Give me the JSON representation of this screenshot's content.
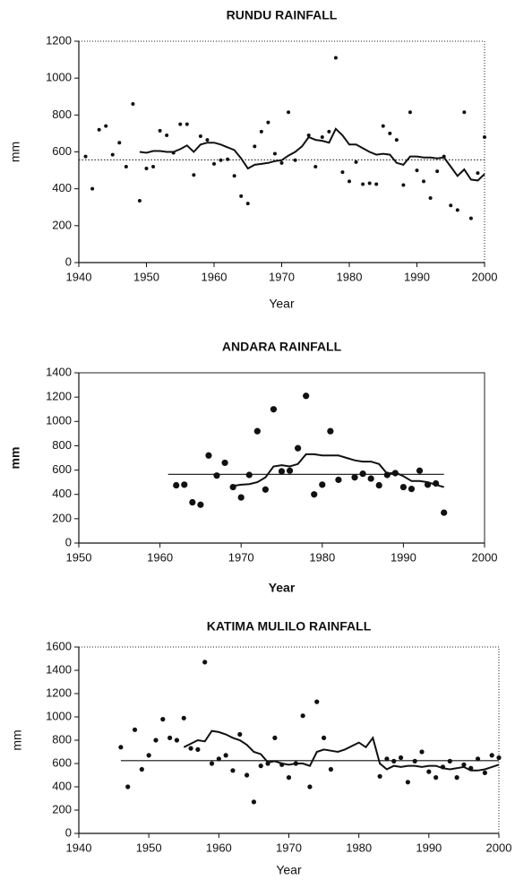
{
  "chart_data": [
    {
      "type": "scatter",
      "title": "RUNDU RAINFALL",
      "xlabel": "Year",
      "ylabel": "mm",
      "xlim": [
        1940,
        2000
      ],
      "ylim": [
        0,
        1200
      ],
      "xticks": [
        1940,
        1950,
        1960,
        1970,
        1980,
        1990,
        2000
      ],
      "yticks": [
        0,
        200,
        400,
        600,
        800,
        1000,
        1200
      ],
      "frame": "dotted",
      "color": "#111",
      "series": [
        {
          "kind": "points",
          "x": [
            1941,
            1942,
            1943,
            1944,
            1945,
            1946,
            1947,
            1948,
            1949,
            1950,
            1951,
            1952,
            1953,
            1954,
            1955,
            1956,
            1957,
            1958,
            1959,
            1960,
            1961,
            1962,
            1963,
            1964,
            1965,
            1966,
            1967,
            1968,
            1969,
            1970,
            1971,
            1972,
            1974,
            1975,
            1976,
            1977,
            1978,
            1979,
            1980,
            1981,
            1982,
            1983,
            1984,
            1985,
            1986,
            1987,
            1988,
            1989,
            1990,
            1991,
            1992,
            1993,
            1994,
            1995,
            1996,
            1997,
            1998,
            1999,
            2000
          ],
          "values": [
            575,
            400,
            720,
            740,
            585,
            650,
            520,
            860,
            335,
            510,
            520,
            715,
            690,
            595,
            750,
            750,
            475,
            685,
            665,
            535,
            555,
            560,
            470,
            360,
            320,
            630,
            710,
            760,
            590,
            540,
            815,
            555,
            690,
            520,
            680,
            710,
            1110,
            490,
            440,
            545,
            425,
            430,
            425,
            740,
            700,
            665,
            420,
            815,
            500,
            440,
            350,
            495,
            575,
            310,
            285,
            815,
            240,
            485,
            680
          ]
        },
        {
          "kind": "line",
          "linestyle": "solid",
          "x": [
            1949,
            1950,
            1951,
            1952,
            1953,
            1954,
            1955,
            1956,
            1957,
            1958,
            1959,
            1960,
            1961,
            1962,
            1963,
            1964,
            1965,
            1966,
            1967,
            1968,
            1969,
            1970,
            1971,
            1972,
            1973,
            1974,
            1975,
            1976,
            1977,
            1978,
            1979,
            1980,
            1981,
            1982,
            1983,
            1984,
            1985,
            1986,
            1987,
            1988,
            1989,
            1990,
            1991,
            1992,
            1993,
            1994,
            1995,
            1996,
            1997,
            1998,
            1999,
            2000
          ],
          "values": [
            600,
            595,
            605,
            605,
            600,
            600,
            615,
            635,
            600,
            640,
            650,
            650,
            640,
            625,
            610,
            565,
            510,
            530,
            535,
            540,
            550,
            555,
            580,
            600,
            630,
            680,
            665,
            660,
            650,
            725,
            690,
            640,
            640,
            620,
            600,
            585,
            590,
            585,
            540,
            530,
            575,
            575,
            570,
            570,
            565,
            570,
            520,
            470,
            505,
            450,
            445,
            480
          ]
        },
        {
          "kind": "line",
          "linestyle": "dotted",
          "x": [
            1940,
            2000
          ],
          "values": [
            557,
            557
          ]
        }
      ]
    },
    {
      "type": "scatter",
      "title": "ANDARA RAINFALL",
      "xlabel": "Year",
      "ylabel": "mm",
      "xlim": [
        1950,
        2000
      ],
      "ylim": [
        0,
        1400
      ],
      "xticks": [
        1950,
        1960,
        1970,
        1980,
        1990,
        2000
      ],
      "yticks": [
        0,
        200,
        400,
        600,
        800,
        1000,
        1200,
        1400
      ],
      "frame": "solid",
      "color": "#111",
      "series": [
        {
          "kind": "points",
          "x": [
            1962,
            1963,
            1964,
            1965,
            1966,
            1967,
            1968,
            1969,
            1970,
            1971,
            1972,
            1973,
            1974,
            1975,
            1976,
            1977,
            1978,
            1979,
            1980,
            1981,
            1982,
            1984,
            1985,
            1986,
            1987,
            1988,
            1989,
            1990,
            1991,
            1992,
            1993,
            1994,
            1995
          ],
          "values": [
            475,
            480,
            335,
            315,
            720,
            555,
            660,
            460,
            375,
            560,
            920,
            440,
            1100,
            590,
            595,
            780,
            1210,
            400,
            480,
            920,
            520,
            540,
            570,
            530,
            475,
            560,
            575,
            460,
            445,
            595,
            480,
            490,
            250
          ]
        },
        {
          "kind": "line",
          "linestyle": "solid",
          "x": [
            1969,
            1970,
            1971,
            1972,
            1973,
            1974,
            1975,
            1976,
            1977,
            1978,
            1979,
            1980,
            1981,
            1982,
            1983,
            1984,
            1985,
            1986,
            1987,
            1988,
            1989,
            1990,
            1991,
            1992,
            1993,
            1994,
            1995
          ],
          "values": [
            470,
            480,
            485,
            500,
            540,
            630,
            640,
            630,
            650,
            730,
            730,
            720,
            720,
            720,
            700,
            680,
            670,
            670,
            650,
            570,
            580,
            550,
            510,
            510,
            500,
            480,
            460
          ]
        },
        {
          "kind": "line",
          "linestyle": "solid",
          "x": [
            1961,
            1995
          ],
          "values": [
            565,
            565
          ]
        }
      ]
    },
    {
      "type": "scatter",
      "title": "KATIMA MULILO RAINFALL",
      "xlabel": "Year",
      "ylabel": "mm",
      "xlim": [
        1940,
        2000
      ],
      "ylim": [
        0,
        1600
      ],
      "xticks": [
        1940,
        1950,
        1960,
        1970,
        1980,
        1990,
        2000
      ],
      "yticks": [
        0,
        200,
        400,
        600,
        800,
        1000,
        1200,
        1400,
        1600
      ],
      "frame": "dotted",
      "color": "#111",
      "series": [
        {
          "kind": "points",
          "x": [
            1946,
            1947,
            1948,
            1949,
            1950,
            1951,
            1952,
            1953,
            1954,
            1955,
            1956,
            1957,
            1958,
            1959,
            1960,
            1961,
            1962,
            1963,
            1964,
            1965,
            1966,
            1967,
            1968,
            1969,
            1970,
            1971,
            1972,
            1973,
            1974,
            1975,
            1976,
            1983,
            1984,
            1985,
            1986,
            1987,
            1988,
            1989,
            1990,
            1991,
            1992,
            1993,
            1994,
            1995,
            1996,
            1997,
            1998,
            1999,
            2000
          ],
          "values": [
            740,
            400,
            890,
            550,
            670,
            800,
            980,
            820,
            800,
            990,
            730,
            720,
            1470,
            600,
            640,
            670,
            540,
            850,
            500,
            270,
            580,
            600,
            820,
            590,
            480,
            600,
            1010,
            400,
            1130,
            820,
            550,
            490,
            640,
            620,
            650,
            440,
            620,
            700,
            530,
            480,
            570,
            620,
            480,
            590,
            560,
            640,
            520,
            670,
            650
          ]
        },
        {
          "kind": "line",
          "linestyle": "solid",
          "x": [
            1955,
            1956,
            1957,
            1958,
            1959,
            1960,
            1961,
            1962,
            1963,
            1964,
            1965,
            1966,
            1967,
            1968,
            1969,
            1970,
            1971,
            1972,
            1973,
            1974,
            1975,
            1976,
            1977,
            1978,
            1979,
            1980,
            1981,
            1982,
            1983,
            1984,
            1985,
            1986,
            1987,
            1988,
            1989,
            1990,
            1991,
            1992,
            1993,
            1994,
            1995,
            1996,
            1997,
            1998,
            1999,
            2000
          ],
          "values": [
            740,
            770,
            800,
            790,
            880,
            870,
            850,
            820,
            800,
            760,
            700,
            680,
            610,
            620,
            600,
            590,
            600,
            600,
            580,
            700,
            720,
            710,
            700,
            720,
            750,
            780,
            740,
            820,
            600,
            550,
            580,
            570,
            580,
            580,
            570,
            580,
            580,
            560,
            550,
            560,
            570,
            540,
            540,
            550,
            570,
            590
          ]
        },
        {
          "kind": "line",
          "linestyle": "solid",
          "x": [
            1946,
            2000
          ],
          "values": [
            625,
            625
          ]
        }
      ]
    }
  ]
}
